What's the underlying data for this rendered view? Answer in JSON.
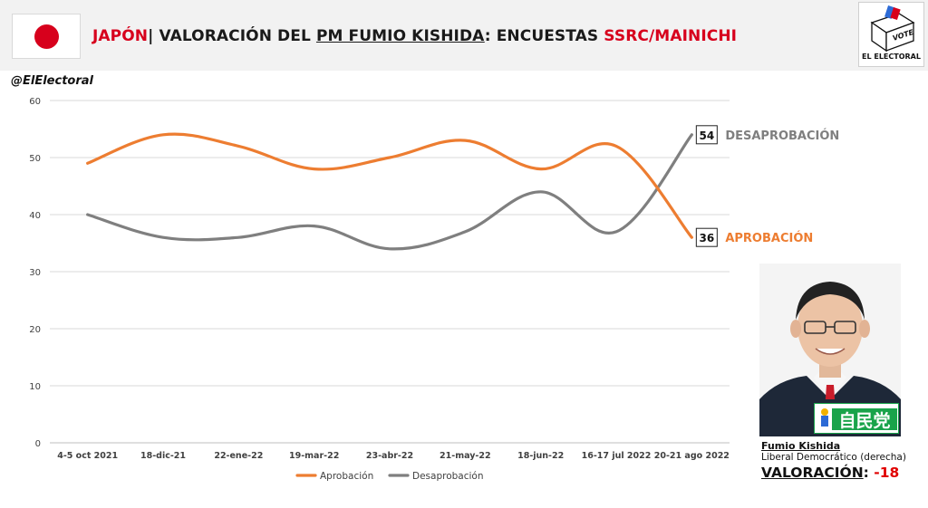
{
  "header": {
    "country": "JAPÓN",
    "separator": "|",
    "title_prefix": "VALORACIÓN DEL",
    "title_subject": "PM FUMIO KISHIDA",
    "title_colon": ":",
    "title_mid": "ENCUESTAS",
    "pollster": "SSRC/MAINICHI"
  },
  "logo": {
    "vote_label": "VOTE",
    "name": "EL ELECTORAL"
  },
  "handle": "@ElElectoral",
  "chart_data": {
    "type": "line",
    "categories": [
      "4-5 oct 2021",
      "18-dic-21",
      "22-ene-22",
      "19-mar-22",
      "23-abr-22",
      "21-may-22",
      "18-jun-22",
      "16-17 jul 2022",
      "20-21 ago 2022"
    ],
    "series": [
      {
        "name": "Aprobación",
        "color": "#ed7d31",
        "values": [
          49,
          54,
          52,
          48,
          50,
          53,
          48,
          52,
          36
        ],
        "end_label": "36",
        "end_tag": "APROBACIÓN"
      },
      {
        "name": "Desaprobación",
        "color": "#7f7f7f",
        "values": [
          40,
          36,
          36,
          38,
          34,
          37,
          44,
          37,
          54
        ],
        "end_label": "54",
        "end_tag": "DESAPROBACIÓN"
      }
    ],
    "ylim": [
      0,
      60
    ],
    "yticks": [
      "0",
      "10",
      "20",
      "30",
      "40",
      "50",
      "60"
    ],
    "grid": true,
    "legend_position": "bottom"
  },
  "pm": {
    "name": "Fumio Kishida",
    "party": "Liberal Democrático (derecha)",
    "party_logo_text": "自民党",
    "rating_label": "VALORACIÓN",
    "rating_colon": ":",
    "rating_value": "-18"
  }
}
